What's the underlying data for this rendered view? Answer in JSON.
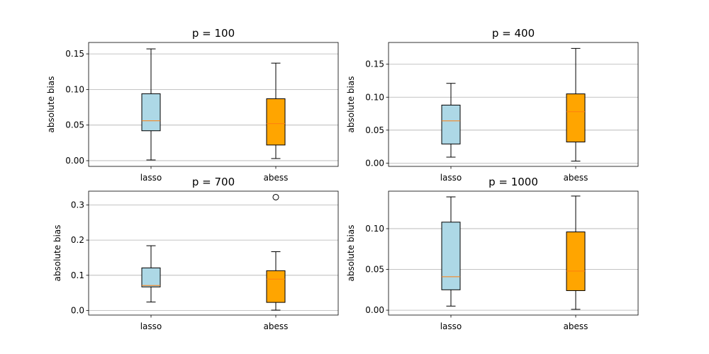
{
  "chart_data": [
    {
      "type": "box",
      "title": "p = 100",
      "ylabel": "absolute bias",
      "categories": [
        "lasso",
        "abess"
      ],
      "ylim": [
        -0.008,
        0.166
      ],
      "yticks": [
        "0.00",
        "0.05",
        "0.10",
        "0.15"
      ],
      "grid": "y",
      "boxes": [
        {
          "name": "lasso",
          "color": "#add8e6",
          "whislo": 0.001,
          "q1": 0.042,
          "median": 0.056,
          "q3": 0.094,
          "whishi": 0.157,
          "fliers": []
        },
        {
          "name": "abess",
          "color": "#ffa500",
          "whislo": 0.003,
          "q1": 0.022,
          "median": 0.052,
          "q3": 0.087,
          "whishi": 0.137,
          "fliers": []
        }
      ]
    },
    {
      "type": "box",
      "title": "p = 400",
      "ylabel": "absolute bias",
      "categories": [
        "lasso",
        "abess"
      ],
      "ylim": [
        -0.005,
        0.183
      ],
      "yticks": [
        "0.00",
        "0.05",
        "0.10",
        "0.15"
      ],
      "grid": "y",
      "boxes": [
        {
          "name": "lasso",
          "color": "#add8e6",
          "whislo": 0.009,
          "q1": 0.029,
          "median": 0.064,
          "q3": 0.088,
          "whishi": 0.121,
          "fliers": []
        },
        {
          "name": "abess",
          "color": "#ffa500",
          "whislo": 0.003,
          "q1": 0.032,
          "median": 0.078,
          "q3": 0.105,
          "whishi": 0.174,
          "fliers": []
        }
      ]
    },
    {
      "type": "box",
      "title": "p = 700",
      "ylabel": "absolute bias",
      "categories": [
        "lasso",
        "abess"
      ],
      "ylim": [
        -0.013,
        0.339
      ],
      "yticks": [
        "0.0",
        "0.1",
        "0.2",
        "0.3"
      ],
      "grid": "y",
      "boxes": [
        {
          "name": "lasso",
          "color": "#add8e6",
          "whislo": 0.024,
          "q1": 0.067,
          "median": 0.071,
          "q3": 0.121,
          "whishi": 0.184,
          "fliers": []
        },
        {
          "name": "abess",
          "color": "#ffa500",
          "whislo": 0.001,
          "q1": 0.023,
          "median": 0.089,
          "q3": 0.113,
          "whishi": 0.167,
          "fliers": [
            0.322
          ]
        }
      ]
    },
    {
      "type": "box",
      "title": "p = 1000",
      "ylabel": "absolute bias",
      "categories": [
        "lasso",
        "abess"
      ],
      "ylim": [
        -0.006,
        0.146
      ],
      "yticks": [
        "0.00",
        "0.05",
        "0.10"
      ],
      "grid": "y",
      "boxes": [
        {
          "name": "lasso",
          "color": "#add8e6",
          "whislo": 0.005,
          "q1": 0.025,
          "median": 0.041,
          "q3": 0.108,
          "whishi": 0.139,
          "fliers": []
        },
        {
          "name": "abess",
          "color": "#ffa500",
          "whislo": 0.001,
          "q1": 0.024,
          "median": 0.048,
          "q3": 0.096,
          "whishi": 0.14,
          "fliers": []
        }
      ]
    }
  ]
}
